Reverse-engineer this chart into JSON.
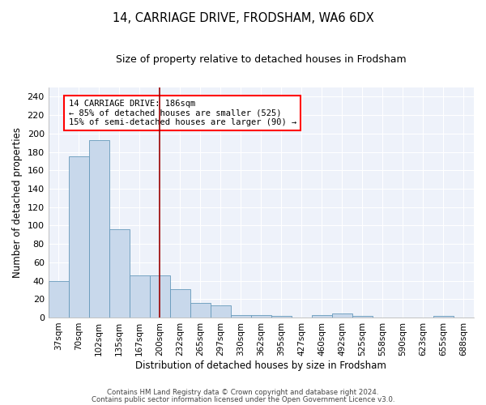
{
  "title": "14, CARRIAGE DRIVE, FRODSHAM, WA6 6DX",
  "subtitle": "Size of property relative to detached houses in Frodsham",
  "xlabel": "Distribution of detached houses by size in Frodsham",
  "ylabel": "Number of detached properties",
  "bar_color": "#c8d8eb",
  "bar_edge_color": "#6699bb",
  "background_color": "#eef2fa",
  "grid_color": "#ffffff",
  "categories": [
    "37sqm",
    "70sqm",
    "102sqm",
    "135sqm",
    "167sqm",
    "200sqm",
    "232sqm",
    "265sqm",
    "297sqm",
    "330sqm",
    "362sqm",
    "395sqm",
    "427sqm",
    "460sqm",
    "492sqm",
    "525sqm",
    "558sqm",
    "590sqm",
    "623sqm",
    "655sqm",
    "688sqm"
  ],
  "values": [
    40,
    175,
    193,
    96,
    46,
    46,
    31,
    16,
    13,
    3,
    3,
    2,
    0,
    3,
    4,
    2,
    0,
    0,
    0,
    2,
    0
  ],
  "red_line_x": 5.0,
  "annotation_text": "14 CARRIAGE DRIVE: 186sqm\n← 85% of detached houses are smaller (525)\n15% of semi-detached houses are larger (90) →",
  "ylim": [
    0,
    250
  ],
  "yticks": [
    0,
    20,
    40,
    60,
    80,
    100,
    120,
    140,
    160,
    180,
    200,
    220,
    240
  ],
  "footnote1": "Contains HM Land Registry data © Crown copyright and database right 2024.",
  "footnote2": "Contains public sector information licensed under the Open Government Licence v3.0."
}
